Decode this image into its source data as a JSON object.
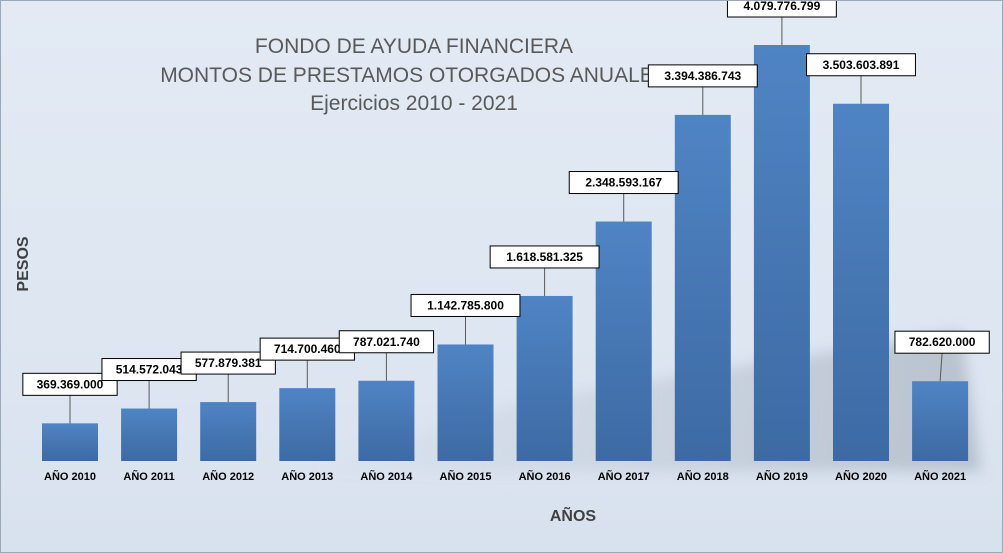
{
  "chart_data": {
    "type": "bar",
    "title": [
      "FONDO DE AYUDA FINANCIERA",
      "MONTOS DE PRESTAMOS OTORGADOS ANUALES",
      "Ejercicios 2010 - 2021"
    ],
    "xlabel": "AÑOS",
    "ylabel": "PESOS",
    "categories": [
      "AÑO 2010",
      "AÑO 2011",
      "AÑO 2012",
      "AÑO 2013",
      "AÑO 2014",
      "AÑO 2015",
      "AÑO 2016",
      "AÑO 2017",
      "AÑO 2018",
      "AÑO 2019",
      "AÑO 2020",
      "AÑO 2021"
    ],
    "values": [
      369369000,
      514572043,
      577879381,
      714700460,
      787021740,
      1142785800,
      1618581325,
      2348593167,
      3394386743,
      4079776799,
      3503603891,
      782620000
    ],
    "value_labels": [
      "369.369.000",
      "514.572.043",
      "577.879.381",
      "714.700.460",
      "787.021.740",
      "1.142.785.800",
      "1.618.581.325",
      "2.348.593.167",
      "3.394.386.743",
      "4.079.776.799",
      "3.503.603.891",
      "782.620.000"
    ],
    "ylim": [
      0,
      4079776799
    ],
    "grid": false,
    "legend": "none",
    "bar_color": "#4a7ebb",
    "background_color": "#dfe7f2"
  }
}
